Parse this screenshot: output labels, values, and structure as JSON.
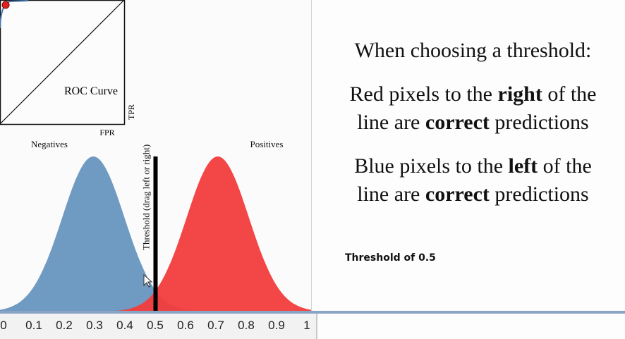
{
  "chart_data": {
    "type": "area",
    "series": [
      {
        "name": "Negatives",
        "mean": 0.3,
        "sd": 0.1,
        "color": "#6f9ac2"
      },
      {
        "name": "Positives",
        "mean": 0.7,
        "sd": 0.1,
        "color": "#f23c3c"
      }
    ],
    "xlim": [
      0,
      1
    ],
    "ticks": [
      "0",
      "0.1",
      "0.2",
      "0.3",
      "0.4",
      "0.5",
      "0.6",
      "0.7",
      "0.8",
      "0.9",
      "1"
    ],
    "threshold": 0.5,
    "threshold_label": "Threshold (drag left or right)",
    "roc": {
      "title": "ROC Curve",
      "xlabel": "FPR",
      "ylabel": "TPR",
      "point": {
        "fpr": 0.023,
        "tpr": 0.977
      }
    }
  },
  "explanation": {
    "heading": "When choosing a threshold:",
    "red": {
      "pre": "Red pixels to the ",
      "dir": "right",
      "mid": " of the",
      "line2pre": "line are ",
      "correct": "correct",
      "post": " predictions"
    },
    "blue": {
      "pre": "Blue pixels to the ",
      "dir": "left",
      "mid": " of the",
      "line2pre": "line are ",
      "correct": "correct",
      "post": " predictions"
    }
  },
  "threshold_readout": "Threshold of 0.5"
}
